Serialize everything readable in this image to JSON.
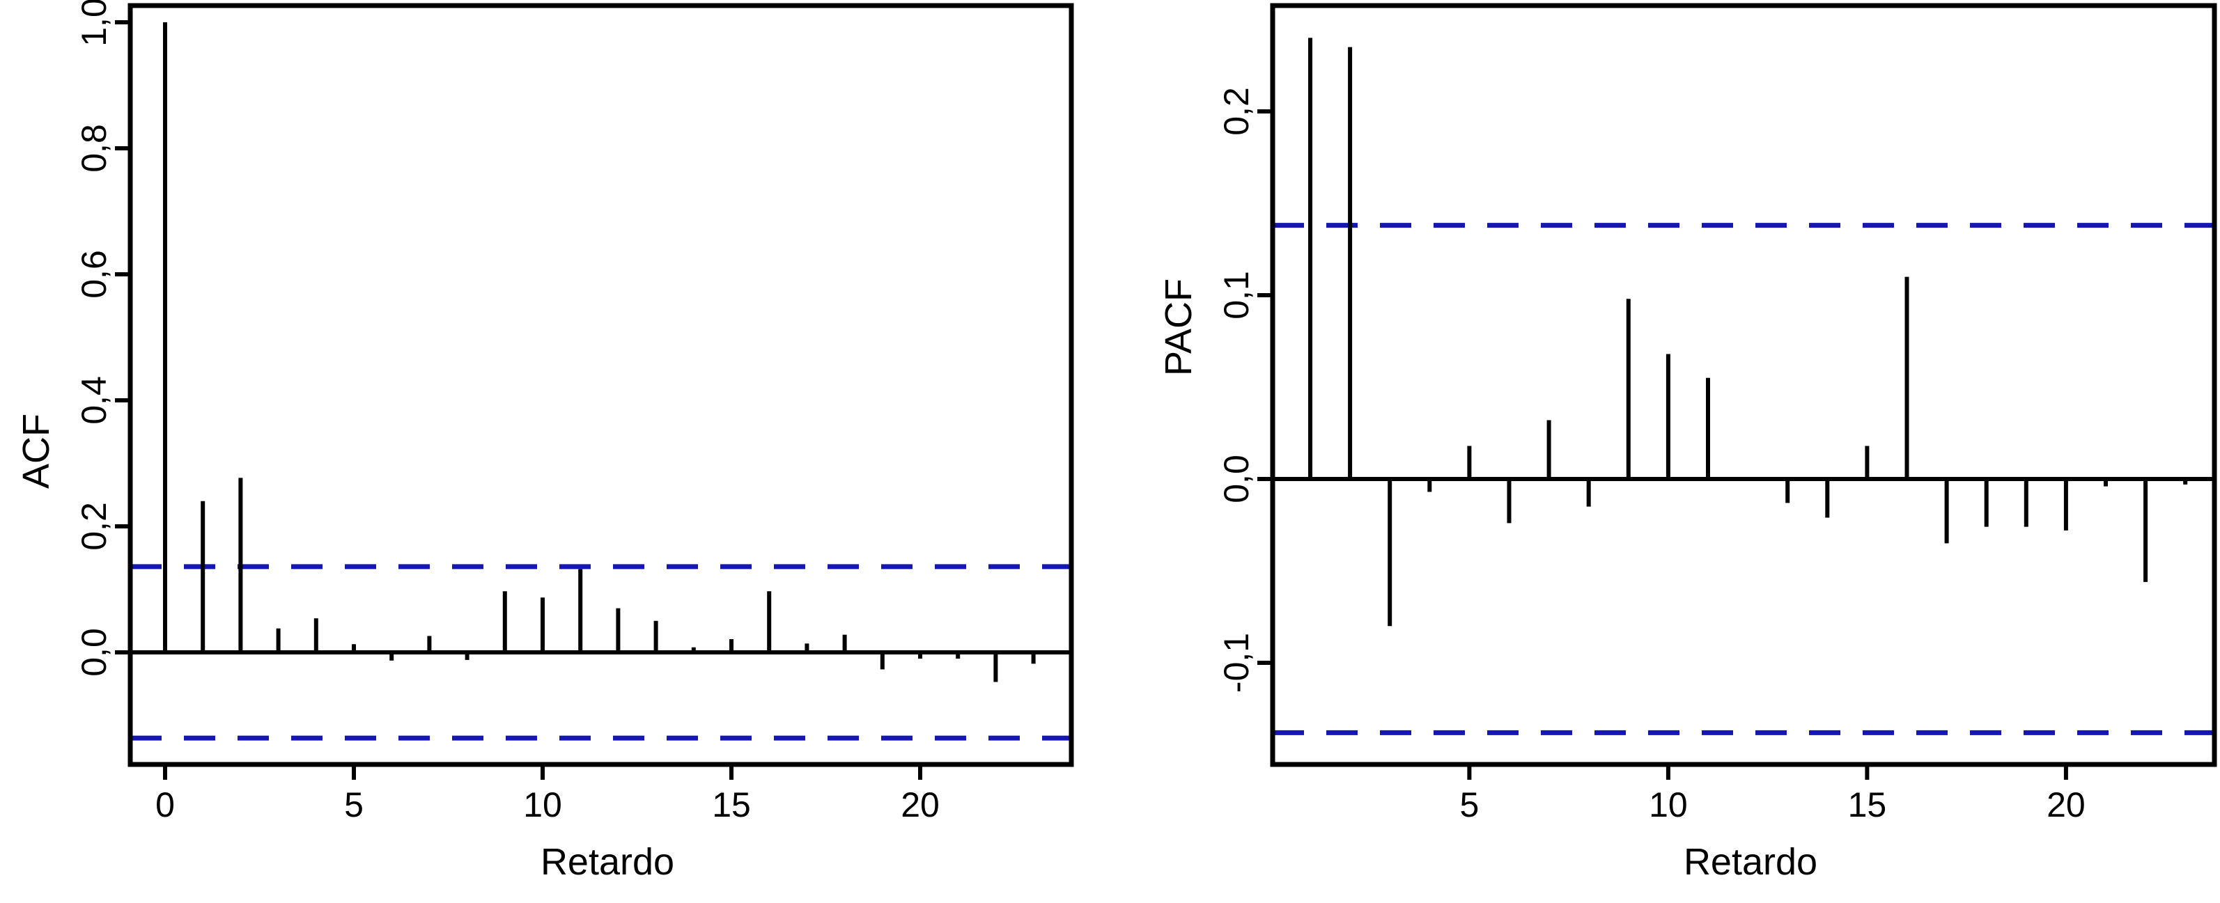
{
  "figure": {
    "background": "#ffffff",
    "colors": {
      "bar": "#000000",
      "axis": "#000000",
      "confidence_band": "#1616b2"
    }
  },
  "chart_data": [
    {
      "type": "bar",
      "subtype": "stem-acf",
      "title": "",
      "xlabel": "Retardo",
      "ylabel": "ACF",
      "first_lag": 0,
      "lags": [
        0,
        1,
        2,
        3,
        4,
        5,
        6,
        7,
        8,
        9,
        10,
        11,
        12,
        13,
        14,
        15,
        16,
        17,
        18,
        19,
        20,
        21,
        22,
        23
      ],
      "values": [
        1.0,
        0.24,
        0.277,
        0.038,
        0.054,
        0.013,
        -0.013,
        0.026,
        -0.012,
        0.097,
        0.087,
        0.132,
        0.07,
        0.05,
        0.008,
        0.021,
        0.097,
        0.014,
        0.028,
        -0.027,
        -0.01,
        -0.01,
        -0.047,
        -0.018
      ],
      "confidence_band": 0.136,
      "band_style": "dashed",
      "ylim": [
        -0.155,
        1.04
      ],
      "xlim": [
        -1,
        24
      ],
      "grid": false,
      "yticks": [
        {
          "v": 1.0,
          "label": "1,0"
        },
        {
          "v": 0.8,
          "label": "0,8"
        },
        {
          "v": 0.6,
          "label": "0,6"
        },
        {
          "v": 0.4,
          "label": "0,4"
        },
        {
          "v": 0.2,
          "label": "0,2"
        },
        {
          "v": 0.0,
          "label": "0,0"
        }
      ],
      "xticks": [
        {
          "v": 0,
          "label": "0"
        },
        {
          "v": 5,
          "label": "5"
        },
        {
          "v": 10,
          "label": "10"
        },
        {
          "v": 15,
          "label": "15"
        },
        {
          "v": 20,
          "label": "20"
        }
      ]
    },
    {
      "type": "bar",
      "subtype": "stem-pacf",
      "title": "",
      "xlabel": "Retardo",
      "ylabel": "PACF",
      "first_lag": 1,
      "lags": [
        1,
        2,
        3,
        4,
        5,
        6,
        7,
        8,
        9,
        10,
        11,
        12,
        13,
        14,
        15,
        16,
        17,
        18,
        19,
        20,
        21,
        22,
        23
      ],
      "values": [
        0.24,
        0.235,
        -0.08,
        -0.007,
        0.018,
        -0.024,
        0.032,
        -0.015,
        0.098,
        0.068,
        0.055,
        0.0,
        -0.013,
        -0.021,
        0.018,
        0.11,
        -0.035,
        -0.026,
        -0.026,
        -0.028,
        -0.004,
        -0.056,
        -0.003
      ],
      "confidence_band": 0.138,
      "band_style": "dashed",
      "ylim": [
        -0.155,
        0.26
      ],
      "xlim": [
        0,
        24
      ],
      "grid": false,
      "yticks": [
        {
          "v": 0.2,
          "label": "0,2"
        },
        {
          "v": 0.1,
          "label": "0,1"
        },
        {
          "v": 0.0,
          "label": "0,0"
        },
        {
          "v": -0.1,
          "label": "-0,1"
        }
      ],
      "xticks": [
        {
          "v": 5,
          "label": "5"
        },
        {
          "v": 10,
          "label": "10"
        },
        {
          "v": 15,
          "label": "15"
        },
        {
          "v": 20,
          "label": "20"
        }
      ]
    }
  ]
}
